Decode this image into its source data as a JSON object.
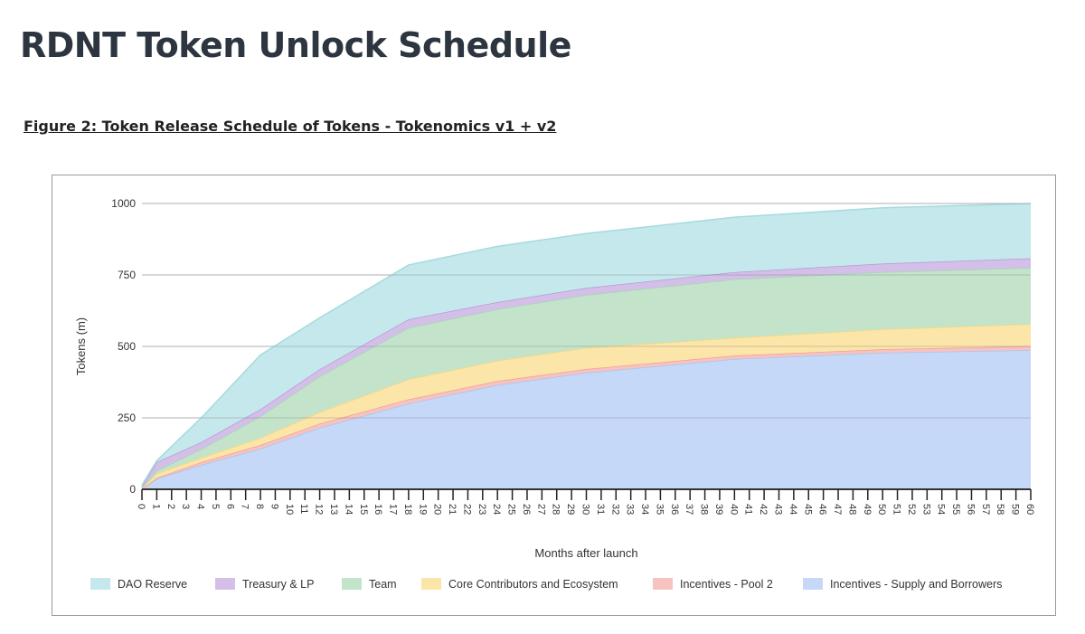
{
  "page_title": "RDNT Token Unlock Schedule",
  "figure_caption": "Figure 2: Token Release Schedule of Tokens - Tokenomics v1 + v2",
  "chart_data": {
    "type": "area",
    "stacked": true,
    "title": "",
    "xlabel": "Months after launch",
    "ylabel": "Tokens (m)",
    "ylim": [
      0,
      1000
    ],
    "xlim": [
      0,
      60
    ],
    "yticks": [
      0,
      250,
      500,
      750,
      1000
    ],
    "grid": true,
    "legend_position": "bottom",
    "x": [
      0,
      1,
      4,
      8,
      12,
      18,
      24,
      30,
      40,
      50,
      60
    ],
    "series": [
      {
        "name": "Incentives - Supply and Borrowers",
        "color": "#c5d8f7",
        "line": "#a9c4f0",
        "values": [
          0,
          37,
          85,
          142,
          215,
          300,
          365,
          408,
          456,
          478,
          487
        ]
      },
      {
        "name": "Incentives - Pool 2",
        "color": "#f6c3c0",
        "line": "#f0a09a",
        "values": [
          0,
          3,
          10,
          13,
          15,
          15,
          14,
          13,
          12,
          12,
          14
        ]
      },
      {
        "name": "Core Contributors and Ecosystem",
        "color": "#fce5a8",
        "line": "#f7d77a",
        "values": [
          2,
          15,
          15,
          25,
          40,
          70,
          71,
          74,
          62,
          70,
          77
        ]
      },
      {
        "name": "Team",
        "color": "#c3e4cb",
        "line": "#a8d6b3",
        "values": [
          3,
          10,
          30,
          75,
          125,
          180,
          180,
          185,
          205,
          200,
          197
        ]
      },
      {
        "name": "Treasury & LP",
        "color": "#d3bfe8",
        "line": "#b89ad8",
        "values": [
          5,
          30,
          25,
          25,
          25,
          30,
          25,
          25,
          25,
          30,
          33
        ]
      },
      {
        "name": "DAO Reserve",
        "color": "#c4e8ec",
        "line": "#a6dadf",
        "values": [
          5,
          5,
          85,
          190,
          180,
          190,
          195,
          190,
          192,
          195,
          192
        ]
      }
    ],
    "legend_order": [
      "DAO Reserve",
      "Treasury & LP",
      "Team",
      "Core Contributors and Ecosystem",
      "Incentives - Pool 2",
      "Incentives - Supply and Borrowers"
    ]
  }
}
